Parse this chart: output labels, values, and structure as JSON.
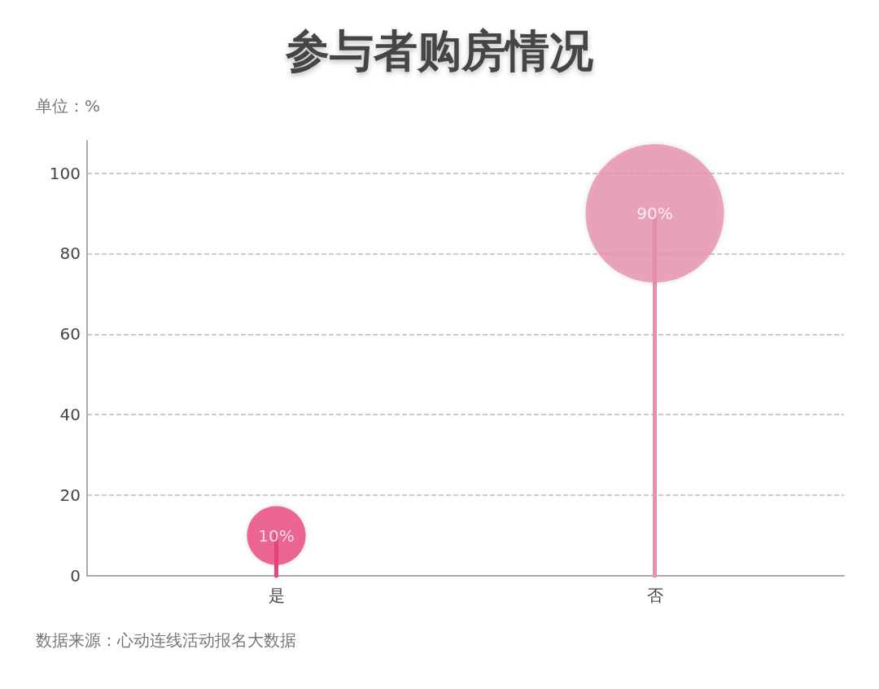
{
  "chart_data": {
    "type": "lollipop",
    "title": "参与者购房情况",
    "ylabel": "单位：%",
    "categories": [
      "是",
      "否"
    ],
    "values": [
      10,
      90
    ],
    "value_labels": [
      "10%",
      "90%"
    ],
    "colors": [
      "#e8457a",
      "#e68fae"
    ],
    "ylim": [
      0,
      108
    ],
    "yticks": [
      0,
      20,
      40,
      60,
      80,
      100
    ],
    "grid": "y",
    "annotations": [
      "数据来源：心动连线活动报名大数据"
    ]
  }
}
